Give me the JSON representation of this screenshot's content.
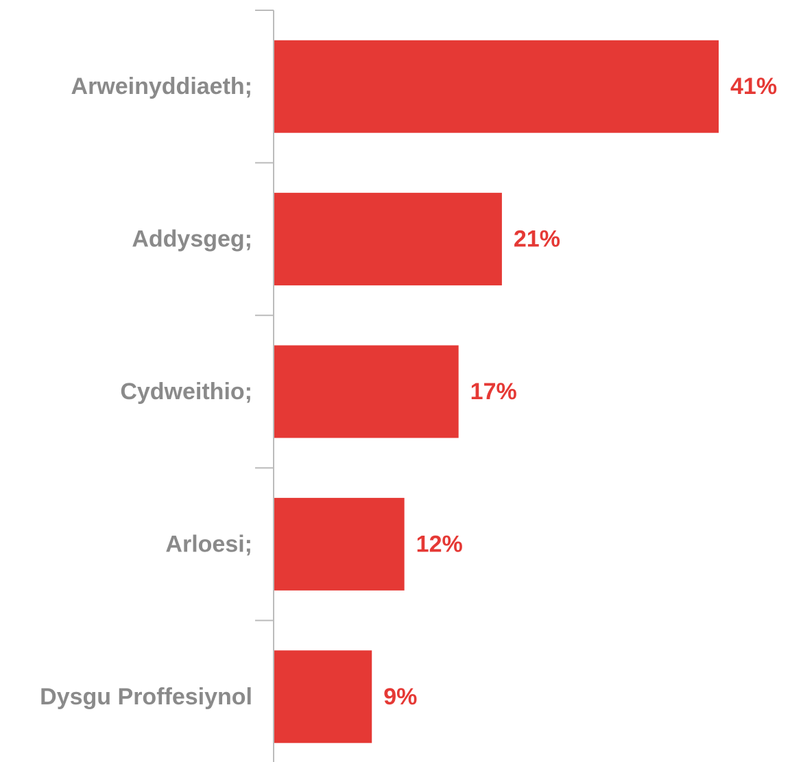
{
  "chart_data": {
    "type": "bar",
    "orientation": "horizontal",
    "categories": [
      "Arweinyddiaeth;",
      "Addysgeg;",
      "Cydweithio;",
      "Arloesi;",
      "Dysgu Proffesiynol"
    ],
    "values": [
      41,
      21,
      17,
      12,
      9
    ],
    "value_labels": [
      "41%",
      "21%",
      "17%",
      "12%",
      "9%"
    ],
    "color": "#e53935"
  }
}
